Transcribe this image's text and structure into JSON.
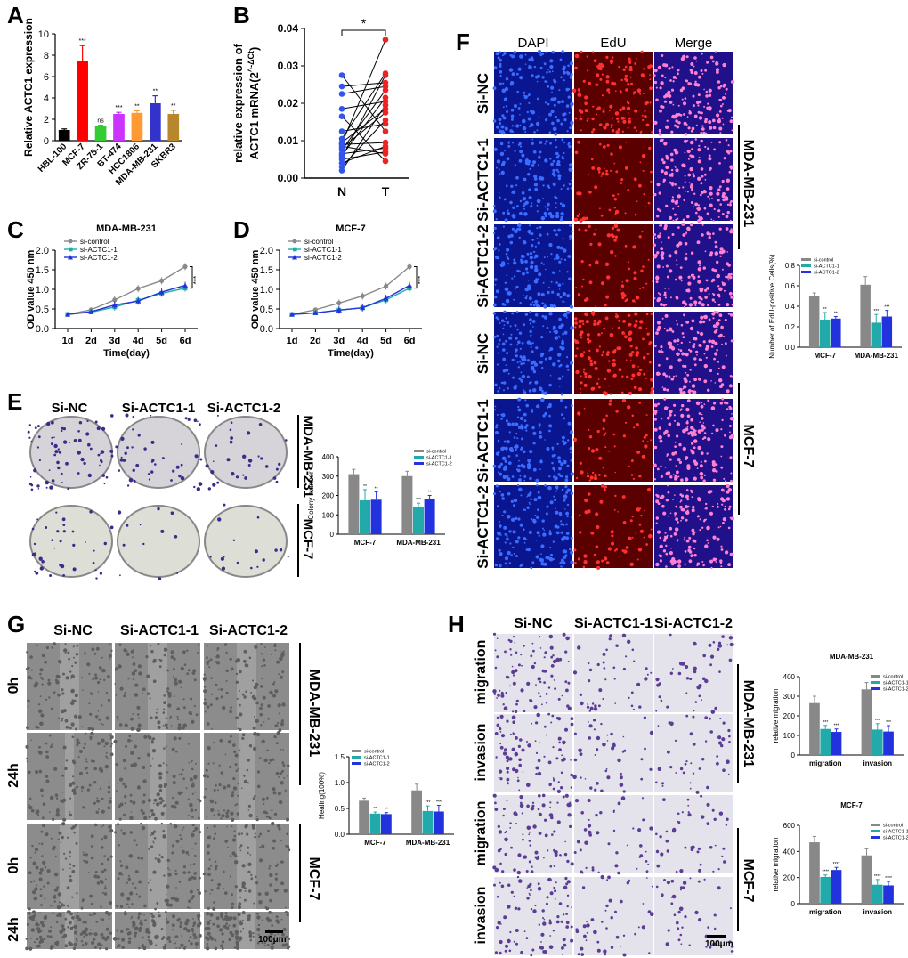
{
  "panels": {
    "A": {
      "letter": "A",
      "chart_data": {
        "type": "bar",
        "categories": [
          "HBL-100",
          "MCF-7",
          "ZR-75-1",
          "BT-474",
          "HCC1806",
          "MDA-MB-231",
          "SKBR3"
        ],
        "values": [
          1.0,
          7.5,
          1.35,
          2.5,
          2.6,
          3.5,
          2.5
        ],
        "errors": [
          0.1,
          1.4,
          0.1,
          0.15,
          0.2,
          0.7,
          0.35
        ],
        "colors": [
          "#000000",
          "#ff0000",
          "#33cc33",
          "#cc33ff",
          "#ff9933",
          "#3333cc",
          "#b8862b"
        ],
        "significance": [
          "",
          "***",
          "ns",
          "***",
          "**",
          "**",
          "**"
        ],
        "ylabel": "Relative ACTC1 expression",
        "ylim": [
          0,
          10
        ],
        "yticks": [
          0,
          2,
          4,
          6,
          8,
          10
        ]
      }
    },
    "B": {
      "letter": "B",
      "chart_data": {
        "type": "scatter",
        "categories": [
          "N",
          "T"
        ],
        "pairs_N": [
          0.0275,
          0.0245,
          0.0225,
          0.0185,
          0.0165,
          0.0125,
          0.0105,
          0.0095,
          0.0092,
          0.009,
          0.0085,
          0.008,
          0.0075,
          0.0065,
          0.006,
          0.0055,
          0.005,
          0.004,
          0.003,
          0.002
        ],
        "pairs_T": [
          0.0125,
          0.0255,
          0.0245,
          0.0205,
          0.0045,
          0.0145,
          0.028,
          0.0185,
          0.037,
          0.0095,
          0.0065,
          0.0175,
          0.0235,
          0.008,
          0.0215,
          0.0275,
          0.007,
          0.0085,
          0.0155,
          0.0195
        ],
        "ylabel": "relative expression of ACTC1 mRNA(2^-ΔCt)",
        "ylabel_line1": "relative expression of",
        "ylabel_line2": "ACTC1 mRNA(2",
        "ylabel_sup": "^-ΔCt",
        "ylabel_end": ")",
        "ylim": [
          0,
          0.04
        ],
        "yticks": [
          "0.00",
          "0.01",
          "0.02",
          "0.03",
          "0.04"
        ],
        "significance": "*",
        "colors": {
          "N": "#3355ee",
          "T": "#ee2222"
        }
      }
    },
    "C": {
      "letter": "C",
      "chart_data": {
        "type": "line",
        "title": "MDA-MB-231",
        "x": [
          "1d",
          "2d",
          "3d",
          "4d",
          "5d",
          "6d"
        ],
        "series": [
          {
            "name": "si-control",
            "values": [
              0.36,
              0.48,
              0.73,
              1.02,
              1.22,
              1.58
            ],
            "color": "#888888"
          },
          {
            "name": "si-ACTC1-1",
            "values": [
              0.36,
              0.42,
              0.55,
              0.72,
              0.9,
              1.03
            ],
            "color": "#22aaaa"
          },
          {
            "name": "si-ACTC1-2",
            "values": [
              0.36,
              0.43,
              0.6,
              0.7,
              0.93,
              1.1
            ],
            "color": "#2233dd"
          }
        ],
        "xlabel": "Time(day)",
        "ylabel": "OD value 450 nm",
        "ylim": [
          0,
          2.0
        ],
        "yticks": [
          "0.0",
          "0.5",
          "1.0",
          "1.5",
          "2.0"
        ],
        "significance": "***"
      }
    },
    "D": {
      "letter": "D",
      "chart_data": {
        "type": "line",
        "title": "MCF-7",
        "x": [
          "1d",
          "2d",
          "3d",
          "4d",
          "5d",
          "6d"
        ],
        "series": [
          {
            "name": "si-control",
            "values": [
              0.36,
              0.48,
              0.65,
              0.83,
              1.08,
              1.58
            ],
            "color": "#888888"
          },
          {
            "name": "si-ACTC1-1",
            "values": [
              0.36,
              0.4,
              0.47,
              0.53,
              0.73,
              1.03
            ],
            "color": "#22aaaa"
          },
          {
            "name": "si-ACTC1-2",
            "values": [
              0.36,
              0.4,
              0.47,
              0.53,
              0.77,
              1.1
            ],
            "color": "#2233dd"
          }
        ],
        "xlabel": "Time(day)",
        "ylabel": "OD value 450 nm",
        "ylim": [
          0,
          2.0
        ],
        "yticks": [
          "0.0",
          "0.5",
          "1.0",
          "1.5",
          "2.0"
        ],
        "significance": "***"
      }
    },
    "E": {
      "letter": "E",
      "headers": [
        "Si-NC",
        "Si-ACTC1-1",
        "Si-ACTC1-2"
      ],
      "row_labels": [
        "MDA-MB-231",
        "MCF-7"
      ],
      "chart_data": {
        "type": "bar",
        "categories": [
          "MCF-7",
          "MDA-MB-231"
        ],
        "series": [
          {
            "name": "si-control",
            "values": [
              310,
              300
            ],
            "errors": [
              25,
              25
            ],
            "color": "#888888"
          },
          {
            "name": "si-ACTC1-1",
            "values": [
              175,
              140
            ],
            "errors": [
              55,
              20
            ],
            "color": "#22aaaa"
          },
          {
            "name": "si-ACTC1-2",
            "values": [
              178,
              180
            ],
            "errors": [
              40,
              20
            ],
            "color": "#2233dd"
          }
        ],
        "significance": [
          [
            "",
            "**",
            "**"
          ],
          [
            "",
            "***",
            "**"
          ]
        ],
        "ylabel": "Colony number",
        "ylim": [
          0,
          400
        ],
        "yticks": [
          "0",
          "100",
          "200",
          "300",
          "400"
        ]
      }
    },
    "F": {
      "letter": "F",
      "headers": [
        "DAPI",
        "EdU",
        "Merge"
      ],
      "row_labels": [
        "Si-NC",
        "Si-ACTC1-1",
        "Si-ACTC1-2",
        "Si-NC",
        "Si-ACTC1-1",
        "Si-ACTC1-2"
      ],
      "group_labels": [
        "MDA-MB-231",
        "MCF-7"
      ],
      "chart_data": {
        "type": "bar",
        "categories": [
          "MCF-7",
          "MDA-MB-231"
        ],
        "series": [
          {
            "name": "si-control",
            "values": [
              0.5,
              0.61
            ],
            "errors": [
              0.03,
              0.08
            ],
            "color": "#888888"
          },
          {
            "name": "si-ACTC1-1",
            "values": [
              0.27,
              0.24
            ],
            "errors": [
              0.07,
              0.08
            ],
            "color": "#22aaaa"
          },
          {
            "name": "si-ACTC1-2",
            "values": [
              0.28,
              0.3
            ],
            "errors": [
              0.02,
              0.06
            ],
            "color": "#2233dd"
          }
        ],
        "significance": [
          [
            "",
            "**",
            "**"
          ],
          [
            "",
            "***",
            "***"
          ]
        ],
        "ylabel": "Number of EdU-positive Cells(%)",
        "ylim": [
          0,
          0.8
        ],
        "yticks": [
          "0.0",
          "0.2",
          "0.4",
          "0.6",
          "0.8"
        ]
      }
    },
    "G": {
      "letter": "G",
      "headers": [
        "Si-NC",
        "Si-ACTC1-1",
        "Si-ACTC1-2"
      ],
      "row_labels": [
        "0h",
        "24h",
        "0h",
        "24h"
      ],
      "group_labels": [
        "MDA-MB-231",
        "MCF-7"
      ],
      "scale_bar": "100μm",
      "chart_data": {
        "type": "bar",
        "categories": [
          "MCF-7",
          "MDA-MB-231"
        ],
        "series": [
          {
            "name": "si-control",
            "values": [
              0.65,
              0.85
            ],
            "errors": [
              0.05,
              0.12
            ],
            "color": "#888888"
          },
          {
            "name": "si-ACTC1-1",
            "values": [
              0.4,
              0.45
            ],
            "errors": [
              0.03,
              0.1
            ],
            "color": "#22aaaa"
          },
          {
            "name": "si-ACTC1-2",
            "values": [
              0.39,
              0.44
            ],
            "errors": [
              0.03,
              0.12
            ],
            "color": "#2233dd"
          }
        ],
        "significance": [
          [
            "",
            "**",
            "**"
          ],
          [
            "",
            "***",
            "***"
          ]
        ],
        "ylabel": "Healing(100%)",
        "ylim": [
          0,
          1.5
        ],
        "yticks": [
          "0.0",
          "0.5",
          "1.0",
          "1.5"
        ]
      }
    },
    "H": {
      "letter": "H",
      "headers": [
        "Si-NC",
        "Si-ACTC1-1",
        "Si-ACTC1-2"
      ],
      "row_labels": [
        "migration",
        "invasion",
        "migration",
        "invasion"
      ],
      "group_labels": [
        "MDA-MB-231",
        "MCF-7"
      ],
      "scale_bar": "100μm",
      "chart_data": [
        {
          "type": "bar",
          "title": "MDA-MB-231",
          "categories": [
            "migration",
            "invasion"
          ],
          "series": [
            {
              "name": "si-control",
              "values": [
                265,
                335
              ],
              "errors": [
                35,
                35
              ],
              "color": "#888888"
            },
            {
              "name": "si-ACTC1-1",
              "values": [
                133,
                130
              ],
              "errors": [
                18,
                30
              ],
              "color": "#22aaaa"
            },
            {
              "name": "si-ACTC1-2",
              "values": [
                118,
                120
              ],
              "errors": [
                15,
                30
              ],
              "color": "#2233dd"
            }
          ],
          "significance": [
            [
              "",
              "***",
              "***"
            ],
            [
              "",
              "***",
              "***"
            ]
          ],
          "ylabel": "relative migration",
          "ylim": [
            0,
            400
          ],
          "yticks": [
            "0",
            "100",
            "200",
            "300",
            "400"
          ]
        },
        {
          "type": "bar",
          "title": "MCF-7",
          "categories": [
            "migration",
            "invasion"
          ],
          "series": [
            {
              "name": "si-control",
              "values": [
                470,
                370
              ],
              "errors": [
                45,
                50
              ],
              "color": "#888888"
            },
            {
              "name": "si-ACTC1-1",
              "values": [
                205,
                145
              ],
              "errors": [
                15,
                40
              ],
              "color": "#22aaaa"
            },
            {
              "name": "si-ACTC1-2",
              "values": [
                258,
                140
              ],
              "errors": [
                20,
                30
              ],
              "color": "#2233dd"
            }
          ],
          "significance": [
            [
              "",
              "****",
              "****"
            ],
            [
              "",
              "****",
              "****"
            ]
          ],
          "ylabel": "relative migration",
          "ylim": [
            0,
            600
          ],
          "yticks": [
            "0",
            "200",
            "400",
            "600"
          ]
        }
      ]
    }
  }
}
